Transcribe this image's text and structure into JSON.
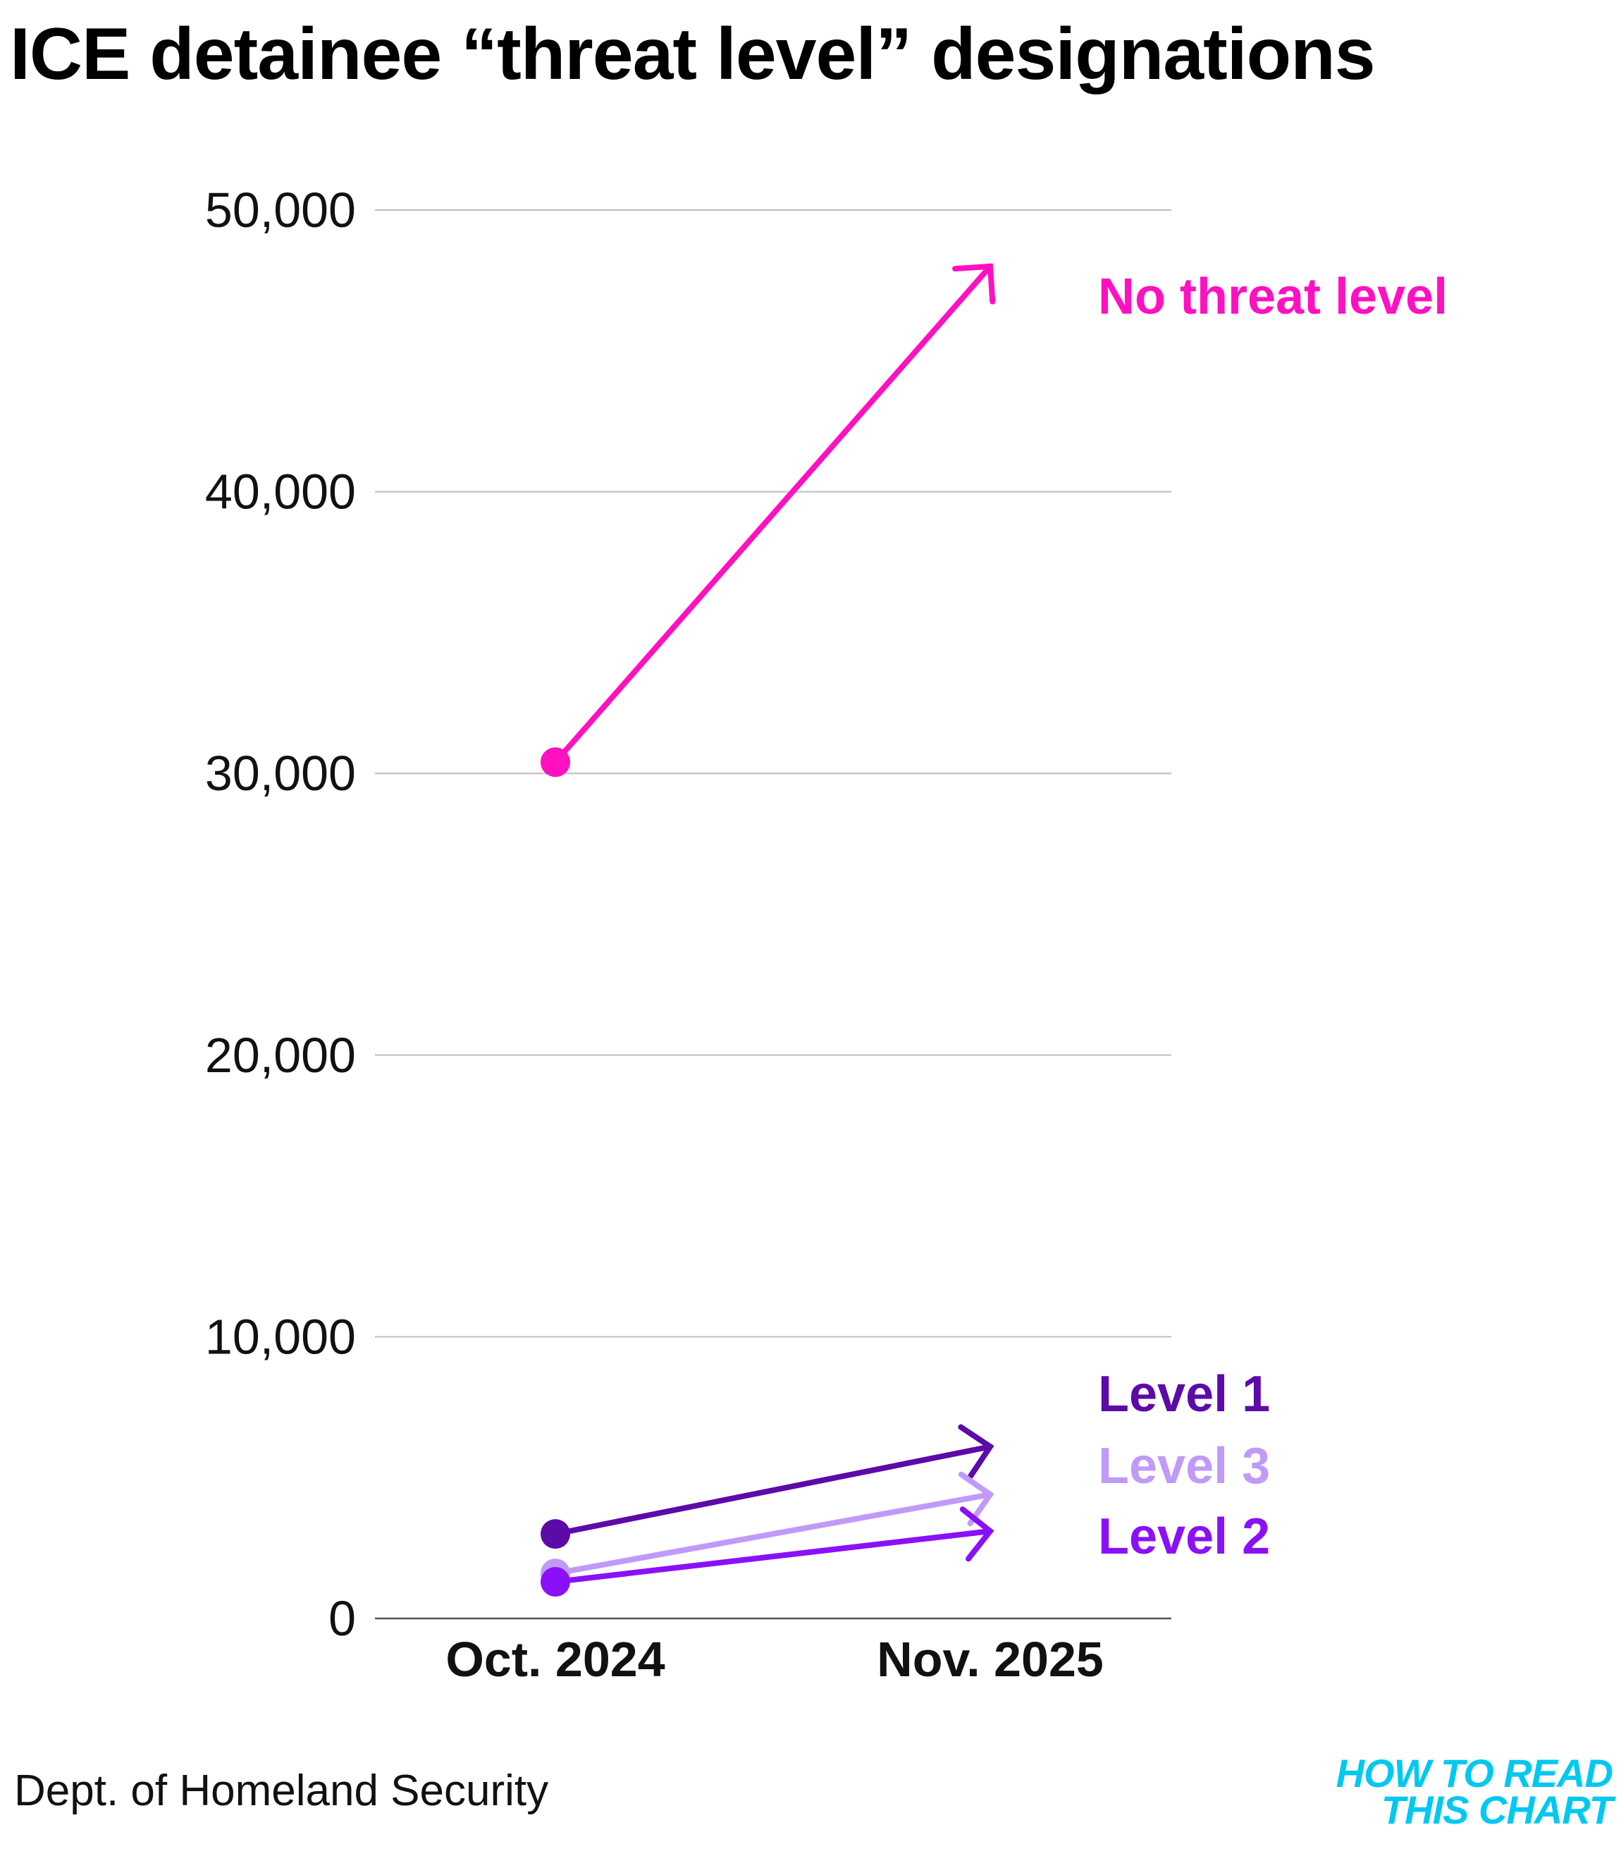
{
  "title": "ICE detainee “threat level” designations",
  "source": "Dept. of Homeland Security",
  "logo": {
    "line1": "HOW TO READ",
    "line2": "THIS CHART",
    "color": "#00c8f0"
  },
  "chart_data": {
    "type": "line",
    "title": "ICE detainee “threat level” designations",
    "x": [
      "Oct. 2024",
      "Nov. 2025"
    ],
    "ylim": [
      0,
      50000
    ],
    "yticks": [
      0,
      10000,
      20000,
      30000,
      40000,
      50000
    ],
    "ytick_labels": [
      "0",
      "10,000",
      "20,000",
      "30,000",
      "40,000",
      "50,000"
    ],
    "grid": true,
    "series": [
      {
        "name": "No threat level",
        "values": [
          30400,
          48000
        ],
        "color": "#ff10c0"
      },
      {
        "name": "Level 1",
        "values": [
          3000,
          6100
        ],
        "color": "#5c0aa8"
      },
      {
        "name": "Level 3",
        "values": [
          1600,
          4400
        ],
        "color": "#c09af8"
      },
      {
        "name": "Level 2",
        "values": [
          1300,
          3100
        ],
        "color": "#8a10f8"
      }
    ]
  }
}
